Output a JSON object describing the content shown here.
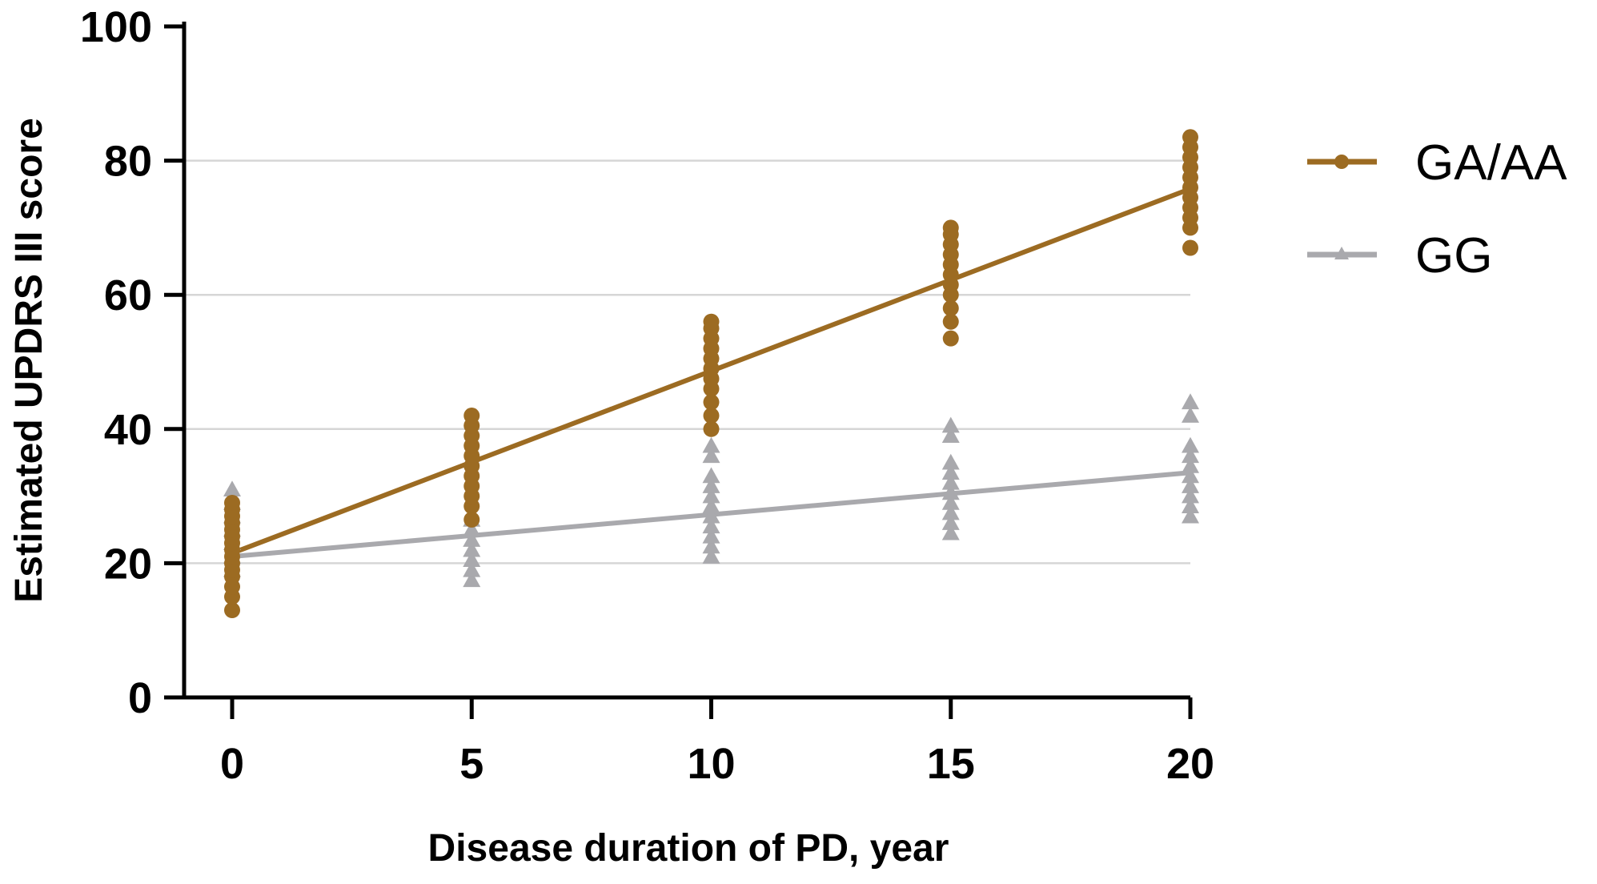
{
  "chart_data": {
    "type": "scatter",
    "title": "",
    "xlabel": "Disease duration of PD, year",
    "ylabel": "Estimated UPDRS III score",
    "xlim": [
      0,
      20
    ],
    "ylim": [
      0,
      100
    ],
    "x_ticks": [
      0,
      5,
      10,
      15,
      20
    ],
    "y_ticks": [
      0,
      20,
      40,
      60,
      80,
      100
    ],
    "x_tick_labels": [
      "0",
      "5",
      "10",
      "15",
      "20"
    ],
    "y_tick_labels": [
      "0",
      "20",
      "40",
      "60",
      "80",
      "100"
    ],
    "gridlines_y": [
      20,
      40,
      60,
      80
    ],
    "legend_position": "top-right",
    "series": [
      {
        "name": "GA/AA",
        "color": "#9c6b22",
        "marker": "circle",
        "fit_line": {
          "x": [
            0,
            20
          ],
          "y": [
            21.5,
            75.8
          ]
        },
        "points": [
          {
            "x": 0,
            "y": [
              13,
              15,
              16.5,
              18,
              19,
              20,
              21,
              22,
              23,
              24,
              25,
              26,
              27,
              28,
              29
            ]
          },
          {
            "x": 5,
            "y": [
              26.5,
              28.5,
              30,
              31.5,
              33,
              34.5,
              36,
              37.5,
              39,
              40.5,
              42
            ]
          },
          {
            "x": 10,
            "y": [
              40,
              42,
              44,
              46,
              47.5,
              49,
              50.5,
              52,
              53.5,
              55,
              56
            ]
          },
          {
            "x": 15,
            "y": [
              53.5,
              56,
              58,
              60,
              61.5,
              63,
              64.5,
              66,
              67.5,
              69,
              70
            ]
          },
          {
            "x": 20,
            "y": [
              67,
              70,
              71.5,
              73,
              74.5,
              76,
              77.5,
              79,
              80.5,
              82,
              83.5
            ]
          }
        ]
      },
      {
        "name": "GG",
        "color": "#a9a9ad",
        "marker": "triangle",
        "fit_line": {
          "x": [
            0,
            20
          ],
          "y": [
            21,
            33.5
          ]
        },
        "points": [
          {
            "x": 0,
            "y": [
              19,
              21,
              23,
              25,
              27,
              29,
              31
            ]
          },
          {
            "x": 5,
            "y": [
              17.5,
              19,
              20.5,
              22,
              23.5,
              25,
              26.5
            ]
          },
          {
            "x": 10,
            "y": [
              21,
              22.5,
              24,
              25.5,
              27,
              28.5,
              30,
              31.5,
              33,
              36,
              37.5
            ]
          },
          {
            "x": 15,
            "y": [
              24.5,
              26,
              27.5,
              29,
              30.5,
              32,
              33.5,
              35,
              39,
              40.5
            ]
          },
          {
            "x": 20,
            "y": [
              27,
              28.5,
              30,
              31.5,
              33,
              34.5,
              36,
              37.5,
              42,
              44
            ]
          }
        ]
      }
    ]
  }
}
